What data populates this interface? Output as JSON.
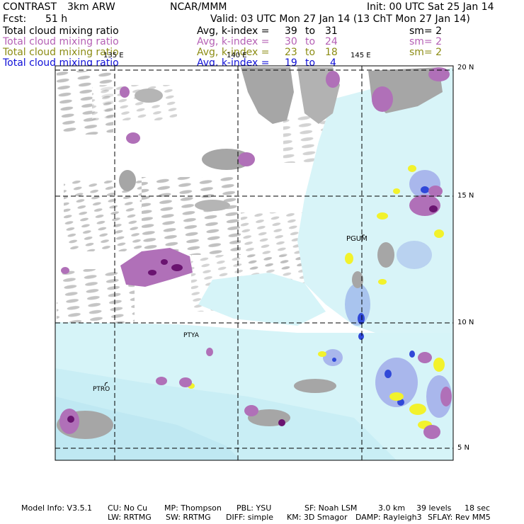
{
  "header": {
    "model": "CONTRAST",
    "resolution": "3km ARW",
    "org": "NCAR/MMM",
    "init": "Init: 00 UTC Sat 25 Jan 14",
    "fcst_label": "Fcst:",
    "fcst_value": "51 h",
    "valid": "Valid: 03 UTC Mon 27 Jan 14 (13 ChT Mon 27 Jan 14)"
  },
  "legend": [
    {
      "label": "Total cloud mixing ratio",
      "avg": "Avg, k-index =",
      "range_from": "39",
      "to": "to",
      "range_to": "31",
      "sm": "sm= 2",
      "color": "#000000"
    },
    {
      "label": "Total cloud mixing ratio",
      "avg": "Avg, k-index =",
      "range_from": "30",
      "to": "to",
      "range_to": "24",
      "sm": "sm= 2",
      "color": "#b560b5"
    },
    {
      "label": "Total cloud mixing ratio",
      "avg": "Avg, k-index =",
      "range_from": "23",
      "to": "to",
      "range_to": "18",
      "sm": "sm= 2",
      "color": "#8c8c14"
    },
    {
      "label": "Total cloud mixing ratio",
      "avg": "Avg, k-index =",
      "range_from": "19",
      "to": "to",
      "range_to": "4",
      "sm": "",
      "color": "#1010d8"
    }
  ],
  "map": {
    "lon_labels": [
      "135 E",
      "140 E",
      "145 E"
    ],
    "lat_labels": [
      "20 N",
      "15 N",
      "10 N",
      "5 N"
    ],
    "stations": [
      "PGUM",
      "PTYA",
      "PTRO"
    ]
  },
  "colors": {
    "gray_cloud": "#a6a6a6",
    "purple_cloud": "#b070b8",
    "dark_purple": "#6a1470",
    "light_cyan": "#d6f4f8",
    "mid_cyan": "#bfe8f2",
    "light_blue": "#a9b7ec",
    "blue": "#3048d8",
    "yellow": "#f2f22c"
  },
  "footer": {
    "line1": [
      "Model Info: V3.5.1",
      "CU: No Cu",
      "MP: Thompson",
      "PBL: YSU",
      "SF: Noah LSM",
      "3.0 km",
      "39 levels",
      "18 sec"
    ],
    "line2": [
      "LW: RRTMG",
      "SW: RRTMG",
      "DIFF: simple",
      "KM: 3D Smagor",
      "DAMP: Rayleigh3",
      "SFLAY: Rev MM5"
    ]
  }
}
